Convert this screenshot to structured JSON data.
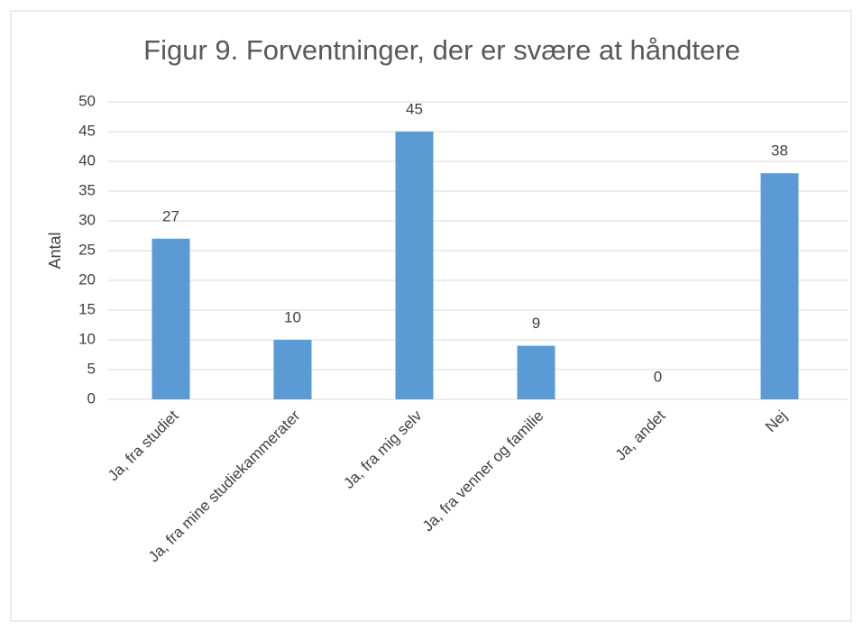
{
  "chart_data": {
    "type": "bar",
    "title": "Figur 9. Forventninger, der er svære at håndtere",
    "y_label": "Antal",
    "categories": [
      "Ja, fra studiet",
      "Ja, fra mine studiekammerater",
      "Ja, fra mig selv",
      "Ja, fra venner og familie",
      "Ja, andet",
      "Nej"
    ],
    "values": [
      27,
      10,
      45,
      9,
      0,
      38
    ],
    "color": "#5b9bd5",
    "ylim": [
      0,
      50
    ],
    "yticks": [
      0,
      5,
      10,
      15,
      20,
      25,
      30,
      35,
      40,
      45,
      50
    ],
    "grid": true,
    "data_labels": true
  }
}
